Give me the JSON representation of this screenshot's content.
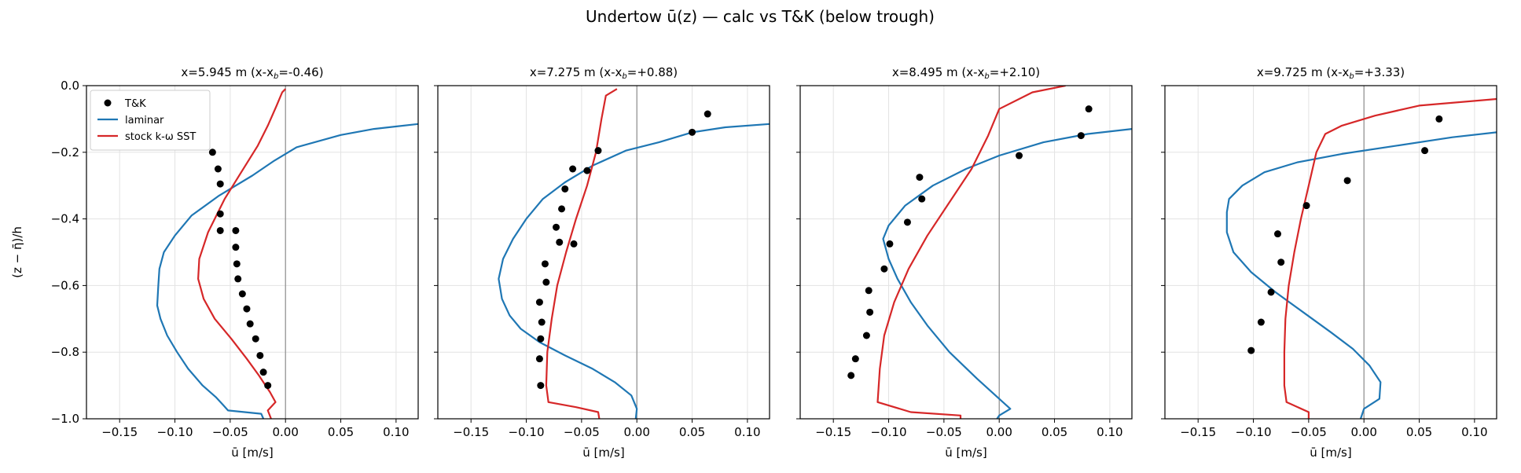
{
  "figure": {
    "title": "Undertow ū(z) — calc vs T&K (below trough)"
  },
  "legend": {
    "entries": [
      {
        "label": "T&K",
        "marker": "dot",
        "color": "#000000"
      },
      {
        "label": "laminar",
        "marker": "line",
        "color": "#1f77b4"
      },
      {
        "label": "stock k-ω SST",
        "marker": "line",
        "color": "#d62728"
      }
    ],
    "placement": "upper-left of first panel"
  },
  "chart_data": [
    {
      "type": "line",
      "title": "x=5.945 m  (x-x_b=-0.46)",
      "xlabel": "ū [m/s]",
      "ylabel": "(z − η̄)/h",
      "xlim": [
        -0.18,
        0.12
      ],
      "ylim": [
        -1.0,
        0.0
      ],
      "xticks": [
        "−0.15",
        "−0.10",
        "−0.05",
        "0.00",
        "0.05",
        "0.10"
      ],
      "yticks": [
        "0.0",
        "−0.2",
        "−0.4",
        "−0.6",
        "−0.8",
        "−1.0"
      ],
      "grid": true,
      "series": [
        {
          "name": "T&K",
          "kind": "scatter",
          "color": "#000000",
          "points": [
            [
              -0.066,
              -0.2
            ],
            [
              -0.061,
              -0.25
            ],
            [
              -0.059,
              -0.295
            ],
            [
              -0.059,
              -0.385
            ],
            [
              -0.059,
              -0.435
            ],
            [
              -0.045,
              -0.435
            ],
            [
              -0.045,
              -0.485
            ],
            [
              -0.044,
              -0.535
            ],
            [
              -0.043,
              -0.58
            ],
            [
              -0.039,
              -0.625
            ],
            [
              -0.035,
              -0.67
            ],
            [
              -0.032,
              -0.715
            ],
            [
              -0.027,
              -0.76
            ],
            [
              -0.023,
              -0.81
            ],
            [
              -0.02,
              -0.86
            ],
            [
              -0.016,
              -0.9
            ]
          ]
        },
        {
          "name": "laminar",
          "kind": "line",
          "color": "#1f77b4",
          "points": [
            [
              0.12,
              -0.115
            ],
            [
              0.08,
              -0.13
            ],
            [
              0.05,
              -0.148
            ],
            [
              0.01,
              -0.185
            ],
            [
              -0.01,
              -0.225
            ],
            [
              -0.03,
              -0.27
            ],
            [
              -0.06,
              -0.33
            ],
            [
              -0.085,
              -0.39
            ],
            [
              -0.1,
              -0.45
            ],
            [
              -0.11,
              -0.5
            ],
            [
              -0.114,
              -0.55
            ],
            [
              -0.115,
              -0.6
            ],
            [
              -0.116,
              -0.66
            ],
            [
              -0.113,
              -0.7
            ],
            [
              -0.107,
              -0.75
            ],
            [
              -0.098,
              -0.8
            ],
            [
              -0.088,
              -0.85
            ],
            [
              -0.075,
              -0.9
            ],
            [
              -0.063,
              -0.935
            ],
            [
              -0.056,
              -0.96
            ],
            [
              -0.052,
              -0.975
            ],
            [
              -0.022,
              -0.985
            ],
            [
              -0.02,
              -1.0
            ]
          ]
        },
        {
          "name": "stock k-ω SST",
          "kind": "line",
          "color": "#d62728",
          "points": [
            [
              0.0,
              -0.01
            ],
            [
              -0.003,
              -0.02
            ],
            [
              -0.008,
              -0.06
            ],
            [
              -0.016,
              -0.12
            ],
            [
              -0.025,
              -0.18
            ],
            [
              -0.04,
              -0.26
            ],
            [
              -0.055,
              -0.34
            ],
            [
              -0.07,
              -0.44
            ],
            [
              -0.078,
              -0.52
            ],
            [
              -0.079,
              -0.58
            ],
            [
              -0.074,
              -0.64
            ],
            [
              -0.064,
              -0.7
            ],
            [
              -0.049,
              -0.76
            ],
            [
              -0.035,
              -0.82
            ],
            [
              -0.024,
              -0.87
            ],
            [
              -0.014,
              -0.92
            ],
            [
              -0.009,
              -0.95
            ],
            [
              -0.016,
              -0.975
            ],
            [
              -0.013,
              -1.0
            ]
          ]
        }
      ]
    },
    {
      "type": "line",
      "title": "x=7.275 m  (x-x_b=+0.88)",
      "xlabel": "ū [m/s]",
      "ylabel": "",
      "xlim": [
        -0.18,
        0.12
      ],
      "ylim": [
        -1.0,
        0.0
      ],
      "xticks": [
        "−0.15",
        "−0.10",
        "−0.05",
        "0.00",
        "0.05",
        "0.10"
      ],
      "yticks": [],
      "grid": true,
      "series": [
        {
          "name": "T&K",
          "kind": "scatter",
          "color": "#000000",
          "points": [
            [
              0.064,
              -0.085
            ],
            [
              0.05,
              -0.14
            ],
            [
              -0.035,
              -0.195
            ],
            [
              -0.058,
              -0.25
            ],
            [
              -0.045,
              -0.255
            ],
            [
              -0.065,
              -0.31
            ],
            [
              -0.068,
              -0.37
            ],
            [
              -0.073,
              -0.425
            ],
            [
              -0.07,
              -0.47
            ],
            [
              -0.057,
              -0.475
            ],
            [
              -0.083,
              -0.535
            ],
            [
              -0.082,
              -0.59
            ],
            [
              -0.088,
              -0.65
            ],
            [
              -0.086,
              -0.71
            ],
            [
              -0.087,
              -0.76
            ],
            [
              -0.088,
              -0.82
            ],
            [
              -0.087,
              -0.9
            ]
          ]
        },
        {
          "name": "laminar",
          "kind": "line",
          "color": "#1f77b4",
          "points": [
            [
              0.12,
              -0.115
            ],
            [
              0.08,
              -0.125
            ],
            [
              0.05,
              -0.14
            ],
            [
              0.02,
              -0.17
            ],
            [
              -0.01,
              -0.195
            ],
            [
              -0.04,
              -0.24
            ],
            [
              -0.065,
              -0.29
            ],
            [
              -0.085,
              -0.34
            ],
            [
              -0.1,
              -0.4
            ],
            [
              -0.112,
              -0.46
            ],
            [
              -0.121,
              -0.52
            ],
            [
              -0.125,
              -0.58
            ],
            [
              -0.122,
              -0.64
            ],
            [
              -0.115,
              -0.69
            ],
            [
              -0.105,
              -0.73
            ],
            [
              -0.088,
              -0.77
            ],
            [
              -0.065,
              -0.81
            ],
            [
              -0.04,
              -0.85
            ],
            [
              -0.02,
              -0.89
            ],
            [
              -0.005,
              -0.93
            ],
            [
              0.0,
              -0.97
            ],
            [
              -0.001,
              -1.0
            ]
          ]
        },
        {
          "name": "stock k-ω SST",
          "kind": "line",
          "color": "#d62728",
          "points": [
            [
              -0.018,
              -0.01
            ],
            [
              -0.028,
              -0.03
            ],
            [
              -0.032,
              -0.1
            ],
            [
              -0.037,
              -0.2
            ],
            [
              -0.045,
              -0.3
            ],
            [
              -0.055,
              -0.4
            ],
            [
              -0.064,
              -0.5
            ],
            [
              -0.072,
              -0.6
            ],
            [
              -0.077,
              -0.7
            ],
            [
              -0.081,
              -0.8
            ],
            [
              -0.082,
              -0.9
            ],
            [
              -0.08,
              -0.95
            ],
            [
              -0.055,
              -0.965
            ],
            [
              -0.035,
              -0.98
            ],
            [
              -0.034,
              -1.0
            ]
          ]
        }
      ]
    },
    {
      "type": "line",
      "title": "x=8.495 m  (x-x_b=+2.10)",
      "xlabel": "ū [m/s]",
      "ylabel": "",
      "xlim": [
        -0.18,
        0.12
      ],
      "ylim": [
        -1.0,
        0.0
      ],
      "xticks": [
        "−0.15",
        "−0.10",
        "−0.05",
        "0.00",
        "0.05",
        "0.10"
      ],
      "yticks": [],
      "grid": true,
      "series": [
        {
          "name": "T&K",
          "kind": "scatter",
          "color": "#000000",
          "points": [
            [
              0.081,
              -0.07
            ],
            [
              0.074,
              -0.15
            ],
            [
              0.018,
              -0.21
            ],
            [
              -0.072,
              -0.275
            ],
            [
              -0.07,
              -0.34
            ],
            [
              -0.083,
              -0.41
            ],
            [
              -0.099,
              -0.475
            ],
            [
              -0.104,
              -0.55
            ],
            [
              -0.118,
              -0.615
            ],
            [
              -0.117,
              -0.68
            ],
            [
              -0.12,
              -0.75
            ],
            [
              -0.13,
              -0.82
            ],
            [
              -0.134,
              -0.87
            ]
          ]
        },
        {
          "name": "laminar",
          "kind": "line",
          "color": "#1f77b4",
          "points": [
            [
              0.12,
              -0.13
            ],
            [
              0.08,
              -0.145
            ],
            [
              0.04,
              -0.17
            ],
            [
              0.0,
              -0.21
            ],
            [
              -0.03,
              -0.25
            ],
            [
              -0.06,
              -0.3
            ],
            [
              -0.085,
              -0.36
            ],
            [
              -0.1,
              -0.42
            ],
            [
              -0.105,
              -0.46
            ],
            [
              -0.1,
              -0.52
            ],
            [
              -0.092,
              -0.58
            ],
            [
              -0.08,
              -0.65
            ],
            [
              -0.065,
              -0.72
            ],
            [
              -0.045,
              -0.8
            ],
            [
              -0.02,
              -0.88
            ],
            [
              0.0,
              -0.94
            ],
            [
              0.01,
              -0.97
            ],
            [
              0.0,
              -0.99
            ],
            [
              -0.002,
              -1.0
            ]
          ]
        },
        {
          "name": "stock k-ω SST",
          "kind": "line",
          "color": "#d62728",
          "points": [
            [
              0.06,
              0.0
            ],
            [
              0.03,
              -0.02
            ],
            [
              0.0,
              -0.07
            ],
            [
              -0.01,
              -0.15
            ],
            [
              -0.025,
              -0.25
            ],
            [
              -0.045,
              -0.35
            ],
            [
              -0.065,
              -0.45
            ],
            [
              -0.082,
              -0.55
            ],
            [
              -0.095,
              -0.65
            ],
            [
              -0.104,
              -0.75
            ],
            [
              -0.108,
              -0.85
            ],
            [
              -0.11,
              -0.95
            ],
            [
              -0.08,
              -0.98
            ],
            [
              -0.035,
              -0.99
            ],
            [
              -0.035,
              -1.0
            ]
          ]
        }
      ]
    },
    {
      "type": "line",
      "title": "x=9.725 m  (x-x_b=+3.33)",
      "xlabel": "ū [m/s]",
      "ylabel": "",
      "xlim": [
        -0.18,
        0.12
      ],
      "ylim": [
        -1.0,
        0.0
      ],
      "xticks": [
        "−0.15",
        "−0.10",
        "−0.05",
        "0.00",
        "0.05",
        "0.10"
      ],
      "yticks": [],
      "grid": true,
      "series": [
        {
          "name": "T&K",
          "kind": "scatter",
          "color": "#000000",
          "points": [
            [
              0.068,
              -0.1
            ],
            [
              0.055,
              -0.195
            ],
            [
              -0.015,
              -0.285
            ],
            [
              -0.052,
              -0.36
            ],
            [
              -0.078,
              -0.445
            ],
            [
              -0.075,
              -0.53
            ],
            [
              -0.084,
              -0.62
            ],
            [
              -0.093,
              -0.71
            ],
            [
              -0.102,
              -0.795
            ]
          ]
        },
        {
          "name": "laminar",
          "kind": "line",
          "color": "#1f77b4",
          "points": [
            [
              0.12,
              -0.14
            ],
            [
              0.08,
              -0.155
            ],
            [
              0.03,
              -0.18
            ],
            [
              -0.02,
              -0.205
            ],
            [
              -0.06,
              -0.23
            ],
            [
              -0.09,
              -0.26
            ],
            [
              -0.11,
              -0.3
            ],
            [
              -0.122,
              -0.34
            ],
            [
              -0.124,
              -0.38
            ],
            [
              -0.124,
              -0.44
            ],
            [
              -0.118,
              -0.5
            ],
            [
              -0.102,
              -0.56
            ],
            [
              -0.08,
              -0.62
            ],
            [
              -0.055,
              -0.68
            ],
            [
              -0.03,
              -0.74
            ],
            [
              -0.01,
              -0.79
            ],
            [
              0.005,
              -0.84
            ],
            [
              0.015,
              -0.89
            ],
            [
              0.014,
              -0.94
            ],
            [
              0.0,
              -0.97
            ],
            [
              -0.003,
              -1.0
            ]
          ]
        },
        {
          "name": "stock k-ω SST",
          "kind": "line",
          "color": "#d62728",
          "points": [
            [
              0.12,
              -0.04
            ],
            [
              0.05,
              -0.06
            ],
            [
              0.01,
              -0.09
            ],
            [
              -0.02,
              -0.12
            ],
            [
              -0.035,
              -0.145
            ],
            [
              -0.043,
              -0.2
            ],
            [
              -0.05,
              -0.3
            ],
            [
              -0.057,
              -0.4
            ],
            [
              -0.063,
              -0.5
            ],
            [
              -0.068,
              -0.6
            ],
            [
              -0.071,
              -0.7
            ],
            [
              -0.072,
              -0.8
            ],
            [
              -0.072,
              -0.9
            ],
            [
              -0.07,
              -0.95
            ],
            [
              -0.05,
              -0.98
            ],
            [
              -0.05,
              -1.0
            ]
          ]
        }
      ]
    }
  ]
}
